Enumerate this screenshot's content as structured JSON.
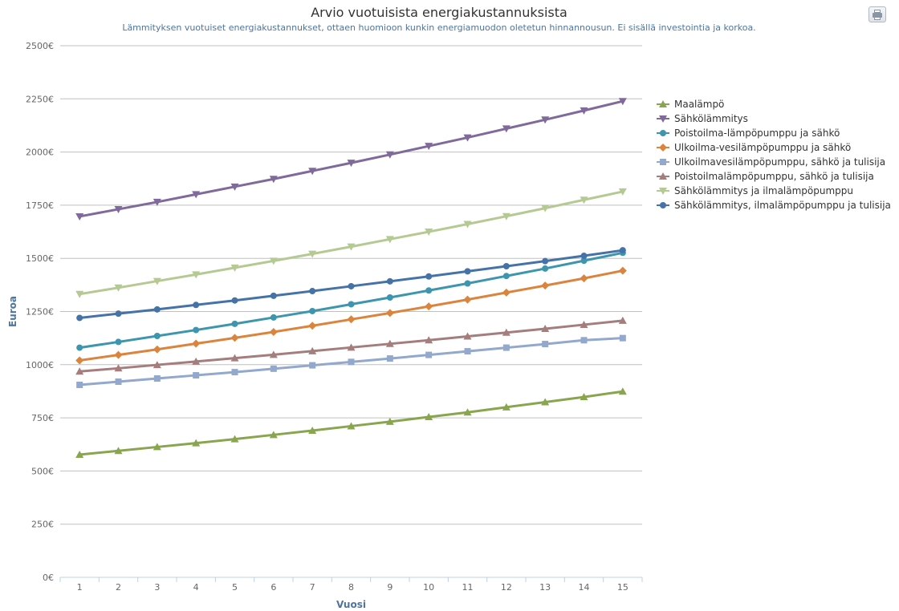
{
  "toolbar": {
    "print_icon": "printer-icon"
  },
  "chart_data": {
    "type": "line",
    "title": "Arvio vuotuisista energiakustannuksista",
    "subtitle": "Lämmityksen vuotuiset energiakustannukset, ottaen huomioon kunkin energiamuodon oletetun hinnannousun. Ei sisällä investointia ja korkoa.",
    "xlabel": "Vuosi",
    "ylabel": "Euroa",
    "categories": [
      "1",
      "2",
      "3",
      "4",
      "5",
      "6",
      "7",
      "8",
      "9",
      "10",
      "11",
      "12",
      "13",
      "14",
      "15"
    ],
    "ylim": [
      0,
      2500
    ],
    "yticks": [
      0,
      250,
      500,
      750,
      1000,
      1250,
      1500,
      1750,
      2000,
      2250,
      2500
    ],
    "ytick_labels": [
      "0€",
      "250€",
      "500€",
      "750€",
      "1000€",
      "1250€",
      "1500€",
      "1750€",
      "2000€",
      "2250€",
      "2500€"
    ],
    "grid": "horizontal",
    "legend_position": "right",
    "series": [
      {
        "name": "Maalämpö",
        "color": "#89a54e",
        "marker": "triangle",
        "values": [
          577,
          595,
          613,
          631,
          650,
          670,
          690,
          711,
          732,
          754,
          776,
          800,
          824,
          848,
          874
        ]
      },
      {
        "name": "Sähkölämmitys",
        "color": "#80699b",
        "marker": "triangle-down",
        "values": [
          1697,
          1731,
          1765,
          1801,
          1837,
          1873,
          1911,
          1949,
          1988,
          2028,
          2068,
          2110,
          2152,
          2195,
          2239
        ]
      },
      {
        "name": "Poistoilma-lämpöpumppu ja sähkö",
        "color": "#3d96ae",
        "marker": "circle",
        "values": [
          1080,
          1107,
          1135,
          1163,
          1192,
          1222,
          1252,
          1284,
          1316,
          1349,
          1382,
          1417,
          1452,
          1489,
          1526
        ]
      },
      {
        "name": "Ulkoilma-vesilämpöpumppu ja sähkö",
        "color": "#db843d",
        "marker": "diamond",
        "values": [
          1020,
          1046,
          1072,
          1099,
          1126,
          1154,
          1183,
          1213,
          1243,
          1274,
          1306,
          1339,
          1372,
          1406,
          1442
        ]
      },
      {
        "name": "Ulkoilmavesilämpöpumppu, sähkö ja tulisija",
        "color": "#92a8cd",
        "marker": "square",
        "values": [
          905,
          920,
          935,
          950,
          965,
          981,
          997,
          1013,
          1029,
          1046,
          1063,
          1080,
          1097,
          1115,
          1125
        ]
      },
      {
        "name": "Poistoilmalämpöpumppu, sähkö ja tulisija",
        "color": "#a47d7c",
        "marker": "triangle",
        "values": [
          968,
          983,
          999,
          1015,
          1031,
          1047,
          1064,
          1081,
          1098,
          1115,
          1133,
          1151,
          1169,
          1188,
          1207
        ]
      },
      {
        "name": "Sähkölämmitys ja ilmalämpöpumppu",
        "color": "#b5ca92",
        "marker": "triangle-down",
        "values": [
          1332,
          1362,
          1393,
          1424,
          1456,
          1488,
          1521,
          1555,
          1590,
          1625,
          1661,
          1698,
          1736,
          1775,
          1814
        ]
      },
      {
        "name": "Sähkölämmitys, ilmalämpöpumppu ja tulisija",
        "color": "#4572a7",
        "marker": "circle",
        "values": [
          1220,
          1240,
          1260,
          1281,
          1302,
          1324,
          1346,
          1369,
          1392,
          1415,
          1439,
          1463,
          1487,
          1512,
          1538
        ]
      }
    ]
  }
}
